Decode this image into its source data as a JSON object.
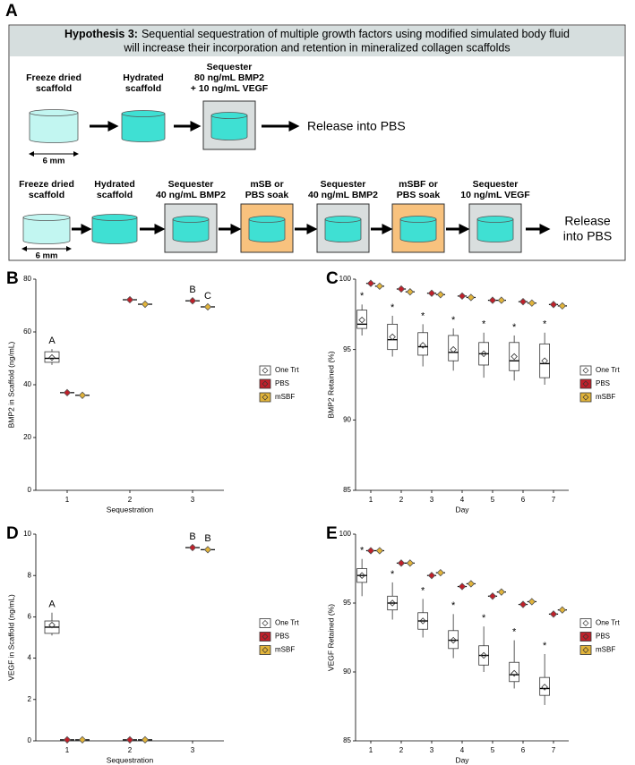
{
  "diagram": {
    "panel": "A",
    "title_bold": "Hypothesis 3:",
    "title_lines": [
      "Sequential sequestration of multiple growth factors using modified simulated body fluid",
      "will increase their incorporation and retention in mineralized collagen scaffolds"
    ],
    "row1": {
      "steps": [
        [
          "Freeze dried",
          "scaffold"
        ],
        [
          "Hydrated",
          "scaffold"
        ],
        [
          "Sequester",
          "80 ng/mL BMP2",
          "+ 10 ng/mL VEGF"
        ]
      ],
      "release": [
        "Release into PBS"
      ],
      "scale": "6 mm"
    },
    "row2": {
      "steps": [
        [
          "Freeze dried",
          "scaffold"
        ],
        [
          "Hydrated",
          "scaffold"
        ],
        [
          "Sequester",
          "40 ng/mL BMP2"
        ],
        [
          "mSB or",
          "PBS soak"
        ],
        [
          "Sequester",
          "40 ng/mL BMP2"
        ],
        [
          "mSBF or",
          "PBS soak"
        ],
        [
          "Sequester",
          "10 ng/mL VEGF"
        ]
      ],
      "release": [
        "Release",
        "into PBS"
      ],
      "scale": "6 mm"
    }
  },
  "chart_data": [
    {
      "type": "box",
      "panel": "B",
      "ylabel": "BMP2 in Scaffold (ng/mL)",
      "xlabel": "Sequestration",
      "categories": [
        "1",
        "2",
        "3"
      ],
      "ylim": [
        0,
        80
      ],
      "yticks": [
        0,
        20,
        40,
        60,
        80
      ],
      "series": [
        {
          "name": "One Trt",
          "color": "#ffffff",
          "boxes": [
            {
              "min": 47.5,
              "q1": 48.5,
              "median": 50,
              "q3": 52.5,
              "max": 53.5,
              "mean": 50.3
            },
            null,
            null
          ],
          "letters": [
            "A",
            null,
            null
          ]
        },
        {
          "name": "PBS",
          "color": "#c0202a",
          "values": [
            37,
            72.2,
            71.8
          ],
          "letters": [
            null,
            null,
            "B"
          ]
        },
        {
          "name": "mSBF",
          "color": "#e2b43a",
          "values": [
            36,
            70.5,
            69.5
          ],
          "letters": [
            null,
            null,
            "C"
          ]
        }
      ]
    },
    {
      "type": "box",
      "panel": "C",
      "ylabel": "BMP2 Retained (%)",
      "xlabel": "Day",
      "categories": [
        "1",
        "2",
        "3",
        "4",
        "5",
        "6",
        "7"
      ],
      "ylim": [
        85,
        100
      ],
      "yticks": [
        85,
        90,
        95,
        100
      ],
      "series": [
        {
          "name": "One Trt",
          "color": "#ffffff",
          "boxes": [
            {
              "min": 96,
              "q1": 96.5,
              "median": 96.8,
              "q3": 97.8,
              "max": 98.2,
              "mean": 97.1
            },
            {
              "min": 94.5,
              "q1": 95,
              "median": 95.7,
              "q3": 96.8,
              "max": 97.4,
              "mean": 95.9
            },
            {
              "min": 93.8,
              "q1": 94.6,
              "median": 95.2,
              "q3": 96.2,
              "max": 96.8,
              "mean": 95.3
            },
            {
              "min": 93.5,
              "q1": 94.2,
              "median": 94.8,
              "q3": 96,
              "max": 96.5,
              "mean": 95
            },
            {
              "min": 93,
              "q1": 93.9,
              "median": 94.7,
              "q3": 95.5,
              "max": 96.2,
              "mean": 94.7
            },
            {
              "min": 92.8,
              "q1": 93.5,
              "median": 94.2,
              "q3": 95.5,
              "max": 96,
              "mean": 94.5
            },
            {
              "min": 92.5,
              "q1": 93,
              "median": 94,
              "q3": 95.4,
              "max": 96.2,
              "mean": 94.2
            }
          ],
          "letters": [
            "*",
            "*",
            "*",
            "*",
            "*",
            "*",
            "*"
          ]
        },
        {
          "name": "PBS",
          "color": "#c0202a",
          "values": [
            99.7,
            99.3,
            99,
            98.8,
            98.5,
            98.4,
            98.2
          ]
        },
        {
          "name": "mSBF",
          "color": "#e2b43a",
          "values": [
            99.5,
            99.1,
            98.9,
            98.7,
            98.5,
            98.3,
            98.1
          ]
        }
      ]
    },
    {
      "type": "box",
      "panel": "D",
      "ylabel": "VEGF in Scaffold (ng/mL)",
      "xlabel": "Sequestration",
      "categories": [
        "1",
        "2",
        "3"
      ],
      "ylim": [
        0,
        10
      ],
      "yticks": [
        0,
        2,
        4,
        6,
        8,
        10
      ],
      "series": [
        {
          "name": "One Trt",
          "color": "#ffffff",
          "boxes": [
            {
              "min": 5.1,
              "q1": 5.2,
              "median": 5.5,
              "q3": 5.8,
              "max": 6.2,
              "mean": 5.6
            },
            null,
            null
          ],
          "letters": [
            "A",
            null,
            null
          ]
        },
        {
          "name": "PBS",
          "color": "#c0202a",
          "values": [
            0.05,
            0.05,
            9.35
          ],
          "letters": [
            null,
            null,
            "B"
          ]
        },
        {
          "name": "mSBF",
          "color": "#e2b43a",
          "values": [
            0.05,
            0.05,
            9.25
          ],
          "letters": [
            null,
            null,
            "B"
          ]
        }
      ]
    },
    {
      "type": "box",
      "panel": "E",
      "ylabel": "VEGF Retained (%)",
      "xlabel": "Day",
      "categories": [
        "1",
        "2",
        "3",
        "4",
        "5",
        "6",
        "7"
      ],
      "ylim": [
        85,
        100
      ],
      "yticks": [
        85,
        90,
        95,
        100
      ],
      "series": [
        {
          "name": "One Trt",
          "color": "#ffffff",
          "boxes": [
            {
              "min": 95.5,
              "q1": 96.5,
              "median": 97,
              "q3": 97.5,
              "max": 98.2,
              "mean": 97
            },
            {
              "min": 93.8,
              "q1": 94.5,
              "median": 95,
              "q3": 95.5,
              "max": 96.5,
              "mean": 95
            },
            {
              "min": 92.5,
              "q1": 93.1,
              "median": 93.7,
              "q3": 94.3,
              "max": 95.3,
              "mean": 93.7
            },
            {
              "min": 91,
              "q1": 91.7,
              "median": 92.3,
              "q3": 93,
              "max": 94.2,
              "mean": 92.3
            },
            {
              "min": 90,
              "q1": 90.5,
              "median": 91.2,
              "q3": 91.9,
              "max": 93.3,
              "mean": 91.2
            },
            {
              "min": 88.8,
              "q1": 89.3,
              "median": 89.8,
              "q3": 90.7,
              "max": 92.3,
              "mean": 89.9
            },
            {
              "min": 87.6,
              "q1": 88.3,
              "median": 88.8,
              "q3": 89.6,
              "max": 91.3,
              "mean": 88.9
            }
          ],
          "letters": [
            "*",
            "*",
            "*",
            "*",
            "*",
            "*",
            "*"
          ]
        },
        {
          "name": "PBS",
          "color": "#c0202a",
          "values": [
            98.8,
            97.9,
            97,
            96.2,
            95.5,
            94.9,
            94.2
          ]
        },
        {
          "name": "mSBF",
          "color": "#e2b43a",
          "values": [
            98.8,
            97.9,
            97.2,
            96.4,
            95.8,
            95.1,
            94.5
          ]
        }
      ]
    }
  ]
}
